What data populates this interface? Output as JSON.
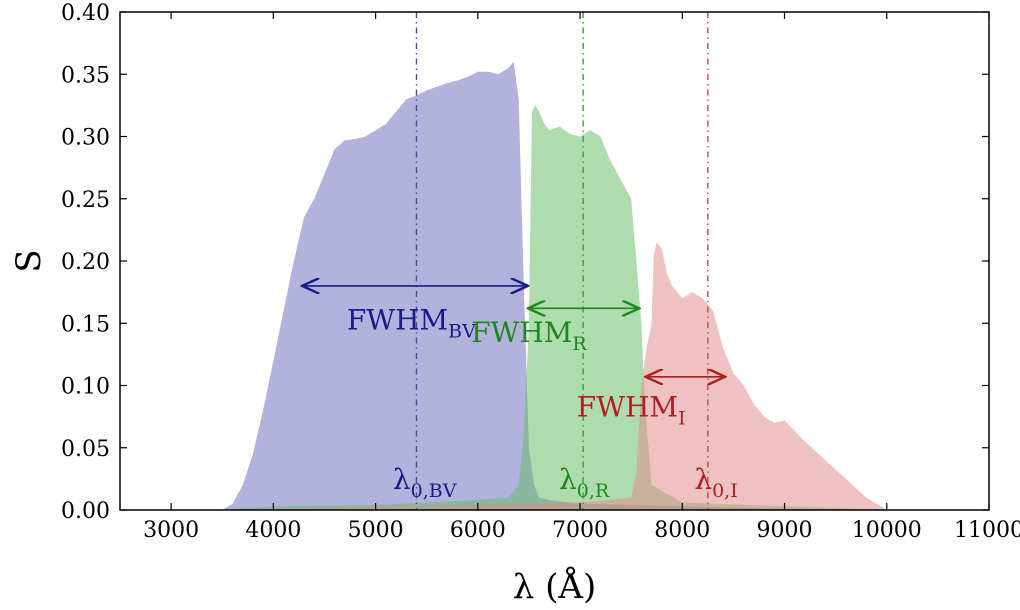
{
  "chart_data": {
    "type": "area",
    "xlabel": "λ (Å)",
    "ylabel": "S",
    "xlim": [
      2500,
      11000
    ],
    "ylim": [
      0,
      0.4
    ],
    "xticks": [
      3000,
      4000,
      5000,
      6000,
      7000,
      8000,
      9000,
      10000,
      11000
    ],
    "yticks": [
      0.0,
      0.05,
      0.1,
      0.15,
      0.2,
      0.25,
      0.3,
      0.35,
      0.4
    ],
    "xtick_labels": [
      "3000",
      "4000",
      "5000",
      "6000",
      "7000",
      "8000",
      "9000",
      "10000",
      "11000"
    ],
    "ytick_labels": [
      "0.00",
      "0.05",
      "0.10",
      "0.15",
      "0.20",
      "0.25",
      "0.30",
      "0.35",
      "0.40"
    ],
    "grid": false,
    "series": [
      {
        "color": "#6b6bbd",
        "x": [
          3500,
          3600,
          3700,
          3800,
          3900,
          4000,
          4100,
          4200,
          4300,
          4400,
          4500,
          4600,
          4700,
          4800,
          4900,
          5000,
          5100,
          5200,
          5300,
          5400,
          5500,
          5600,
          5700,
          5800,
          5900,
          6000,
          6100,
          6200,
          6300,
          6350,
          6400,
          6450,
          6500,
          6550,
          6600,
          6700,
          7000,
          7500,
          8000,
          9000,
          10000
        ],
        "y": [
          0.0,
          0.005,
          0.02,
          0.045,
          0.08,
          0.12,
          0.16,
          0.2,
          0.235,
          0.25,
          0.27,
          0.29,
          0.297,
          0.298,
          0.3,
          0.305,
          0.31,
          0.32,
          0.33,
          0.333,
          0.337,
          0.34,
          0.343,
          0.345,
          0.348,
          0.352,
          0.352,
          0.35,
          0.355,
          0.36,
          0.33,
          0.18,
          0.05,
          0.02,
          0.01,
          0.008,
          0.005,
          0.004,
          0.003,
          0.001,
          0.0
        ]
      },
      {
        "color": "#66bb66",
        "x": [
          3500,
          4000,
          5000,
          6000,
          6300,
          6400,
          6450,
          6500,
          6530,
          6560,
          6600,
          6650,
          6700,
          6800,
          6900,
          7000,
          7100,
          7200,
          7300,
          7400,
          7500,
          7550,
          7600,
          7620,
          7650,
          7700,
          8000,
          9000,
          10000
        ],
        "y": [
          0.0,
          0.003,
          0.004,
          0.008,
          0.01,
          0.02,
          0.06,
          0.15,
          0.32,
          0.325,
          0.32,
          0.31,
          0.305,
          0.308,
          0.302,
          0.3,
          0.305,
          0.3,
          0.28,
          0.265,
          0.25,
          0.2,
          0.15,
          0.11,
          0.07,
          0.02,
          0.006,
          0.003,
          0.0
        ]
      },
      {
        "color": "#e08a8a",
        "x": [
          3500,
          6000,
          7000,
          7500,
          7550,
          7600,
          7650,
          7700,
          7720,
          7750,
          7800,
          7850,
          7900,
          8000,
          8100,
          8200,
          8300,
          8400,
          8500,
          8600,
          8700,
          8800,
          8900,
          9000,
          9200,
          9400,
          9600,
          9800,
          10000
        ],
        "y": [
          0.0,
          0.004,
          0.006,
          0.01,
          0.03,
          0.1,
          0.13,
          0.15,
          0.205,
          0.215,
          0.21,
          0.19,
          0.18,
          0.17,
          0.175,
          0.17,
          0.16,
          0.13,
          0.11,
          0.1,
          0.085,
          0.075,
          0.07,
          0.072,
          0.055,
          0.04,
          0.025,
          0.01,
          0.0
        ]
      }
    ],
    "vlines": [
      {
        "x": 5400,
        "color": "#4a4aa8",
        "style": "dashdot"
      },
      {
        "x": 7030,
        "color": "#3a9a3a",
        "style": "dashdot"
      },
      {
        "x": 8250,
        "color": "#c04a4a",
        "style": "dashdot"
      }
    ],
    "fwhm_arrows": [
      {
        "x1": 4280,
        "x2": 6490,
        "y": 0.18,
        "color": "#1a1a8a"
      },
      {
        "x1": 6490,
        "x2": 7580,
        "y": 0.162,
        "color": "#1a8a1a"
      },
      {
        "x1": 7640,
        "x2": 8420,
        "y": 0.107,
        "color": "#b02020"
      }
    ],
    "annotations": [
      {
        "main": "FWHM",
        "sub": "BV",
        "x": 5350,
        "y": 0.145,
        "color": "#1a1a8a"
      },
      {
        "main": "FWHM",
        "sub": "R",
        "x": 6500,
        "y": 0.135,
        "color": "#1a8a1a"
      },
      {
        "main": "FWHM",
        "sub": "I",
        "x": 7500,
        "y": 0.075,
        "color": "#b02020"
      },
      {
        "main": "λ",
        "sub": "0,BV",
        "x": 5480,
        "y": 0.017,
        "color": "#1a1a8a"
      },
      {
        "main": "λ",
        "sub": "0,R",
        "x": 7040,
        "y": 0.017,
        "color": "#1a8a1a"
      },
      {
        "main": "λ",
        "sub": "0,I",
        "x": 8330,
        "y": 0.017,
        "color": "#b02020"
      }
    ]
  }
}
